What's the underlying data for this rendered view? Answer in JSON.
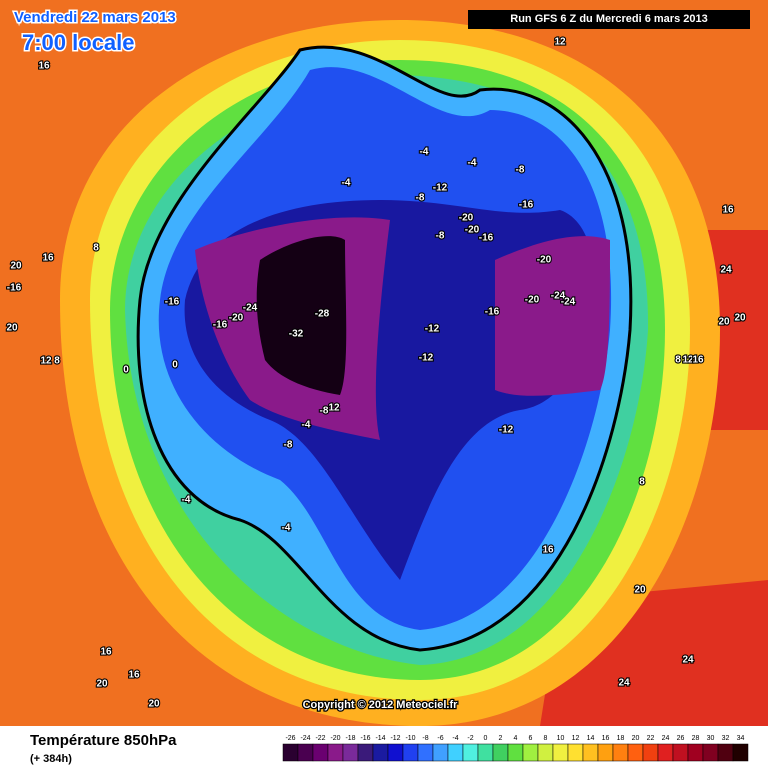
{
  "header": {
    "date": "Vendredi 22 mars 2013",
    "time": "7:00 locale",
    "run": "Run GFS 6 Z du Mercredi 6 mars 2013"
  },
  "copyright": "Copyright © 2012 Meteociel.fr",
  "footer": {
    "title": "Température 850hPa",
    "lead": "(+ 384h)"
  },
  "colorbar": {
    "ticks": [
      -26,
      -24,
      -22,
      -20,
      -18,
      -16,
      -14,
      -12,
      -10,
      -8,
      -6,
      -4,
      -2,
      0,
      2,
      4,
      6,
      8,
      10,
      12,
      14,
      16,
      18,
      20,
      22,
      24,
      26,
      28,
      30,
      32,
      34
    ],
    "colors": [
      "#2a0030",
      "#4a0050",
      "#6a0070",
      "#8a1a8a",
      "#7a2a9a",
      "#3a1a7a",
      "#1a1aa0",
      "#1010d0",
      "#2040f0",
      "#3070ff",
      "#40a0ff",
      "#40d0ff",
      "#50f0e0",
      "#40e0a0",
      "#40d060",
      "#60e040",
      "#a0f040",
      "#d0f040",
      "#f0f040",
      "#ffe030",
      "#ffc020",
      "#ffa010",
      "#ff8010",
      "#ff6010",
      "#f04010",
      "#e02020",
      "#c01020",
      "#a00020",
      "#800020",
      "#500010",
      "#200000"
    ]
  },
  "map_labels": [
    "16",
    "12",
    "20",
    "16",
    "-16",
    "20",
    "12",
    "8",
    "8",
    "0",
    "0",
    "-16",
    "-16",
    "-20",
    "-24",
    "-28",
    "-32",
    "-8",
    "12",
    "-4",
    "-8",
    "-4",
    "-4",
    "-4",
    "-4",
    "-4",
    "-8",
    "-12",
    "-8",
    "-20",
    "-20",
    "-16",
    "-16",
    "-8",
    "-20",
    "-24",
    "-20",
    "-24",
    "-16",
    "-12",
    "-12",
    "-12",
    "16",
    "24",
    "20",
    "20",
    "8",
    "12",
    "16",
    "8",
    "16",
    "20",
    "24",
    "24",
    "16",
    "16",
    "20",
    "20"
  ]
}
